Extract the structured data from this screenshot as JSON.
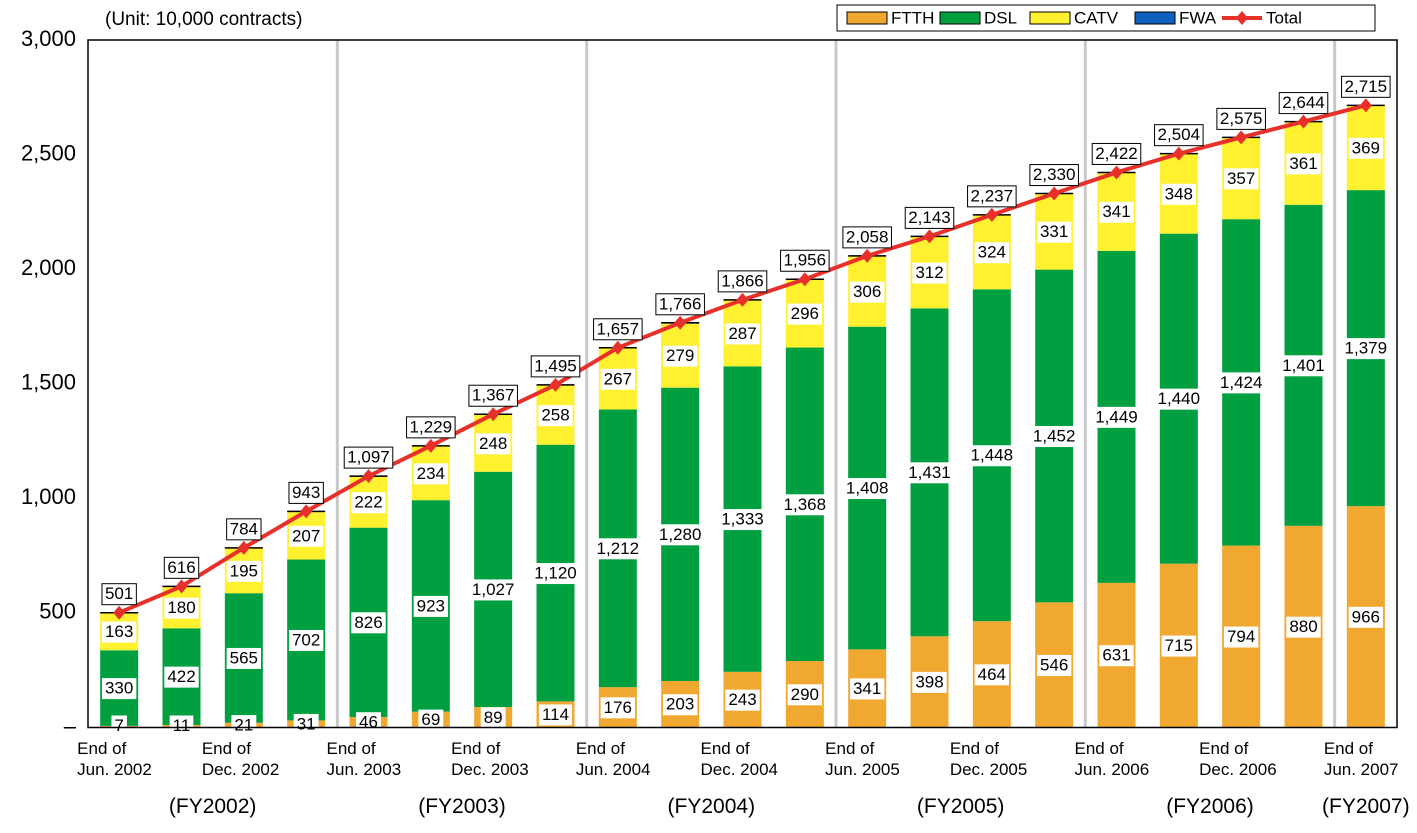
{
  "chart_data": {
    "type": "bar",
    "stacked": true,
    "unit_note": "(Unit: 10,000 contracts)",
    "categories": [
      "End of\nJun. 2002",
      null,
      "End of\nDec. 2002",
      null,
      "End of\nJun. 2003",
      null,
      "End of\nDec. 2003",
      null,
      "End of\nJun. 2004",
      null,
      "End of\nDec. 2004",
      null,
      "End of\nJun. 2005",
      null,
      "End of\nDec. 2005",
      null,
      "End of\nJun. 2006",
      null,
      "End of\nDec. 2006",
      null,
      "End of\nJun. 2007"
    ],
    "fiscal_years": [
      "(FY2002)",
      "(FY2003)",
      "(FY2004)",
      "(FY2005)",
      "(FY2006)",
      "(FY2007)"
    ],
    "series": [
      {
        "name": "FTTH",
        "color": "#f0a830",
        "values": [
          7,
          11,
          21,
          31,
          46,
          69,
          89,
          114,
          176,
          203,
          243,
          290,
          341,
          398,
          464,
          546,
          631,
          715,
          794,
          880,
          966
        ],
        "value_labels": [
          "7",
          "11",
          "21",
          "31",
          "46",
          "69",
          "89",
          "114",
          "176",
          "203",
          "243",
          "290",
          "341",
          "398",
          "464",
          "546",
          "631",
          "715",
          "794",
          "880",
          "966"
        ]
      },
      {
        "name": "DSL",
        "color": "#00a040",
        "values": [
          330,
          422,
          565,
          702,
          826,
          923,
          1027,
          1120,
          1212,
          1280,
          1333,
          1368,
          1408,
          1431,
          1448,
          1452,
          1449,
          1440,
          1424,
          1401,
          1379
        ],
        "value_labels": [
          "330",
          "422",
          "565",
          "702",
          "826",
          "923",
          "1,027",
          "1,120",
          "1,212",
          "1,280",
          "1,333",
          "1,368",
          "1,408",
          "1,431",
          "1,448",
          "1,452",
          "1,449",
          "1,440",
          "1,424",
          "1,401",
          "1,379"
        ]
      },
      {
        "name": "CATV",
        "color": "#fff030",
        "values": [
          163,
          180,
          195,
          207,
          222,
          234,
          248,
          258,
          267,
          279,
          287,
          296,
          306,
          312,
          324,
          331,
          341,
          348,
          357,
          361,
          369
        ],
        "value_labels": [
          "163",
          "180",
          "195",
          "207",
          "222",
          "234",
          "248",
          "258",
          "267",
          "279",
          "287",
          "296",
          "306",
          "312",
          "324",
          "331",
          "341",
          "348",
          "357",
          "361",
          "369"
        ]
      },
      {
        "name": "FWA",
        "color": "#1060c0",
        "values": [
          1,
          3,
          3,
          3,
          3,
          3,
          3,
          3,
          2,
          4,
          3,
          2,
          3,
          2,
          1,
          1,
          1,
          1,
          0,
          2,
          1
        ]
      },
      {
        "name": "Total",
        "type": "line",
        "color": "#e8302a",
        "values": [
          501,
          616,
          784,
          943,
          1097,
          1229,
          1367,
          1495,
          1657,
          1766,
          1866,
          1956,
          2058,
          2143,
          2237,
          2330,
          2422,
          2504,
          2575,
          2644,
          2715
        ],
        "value_labels": [
          "501",
          "616",
          "784",
          "943",
          "1,097",
          "1,229",
          "1,367",
          "1,495",
          "1,657",
          "1,766",
          "1,866",
          "1,956",
          "2,058",
          "2,143",
          "2,237",
          "2,330",
          "2,422",
          "2,504",
          "2,575",
          "2,644",
          "2,715"
        ]
      }
    ],
    "ylim": [
      0,
      3000
    ],
    "yticks": [
      {
        "value": 0,
        "label": "–"
      },
      500,
      {
        "value": 1000,
        "label": "1,000"
      },
      {
        "value": 1500,
        "label": "1,500"
      },
      {
        "value": 2000,
        "label": "2,000"
      },
      {
        "value": 2500,
        "label": "2,500"
      },
      {
        "value": 3000,
        "label": "3,000"
      }
    ],
    "legend": "top-right"
  }
}
